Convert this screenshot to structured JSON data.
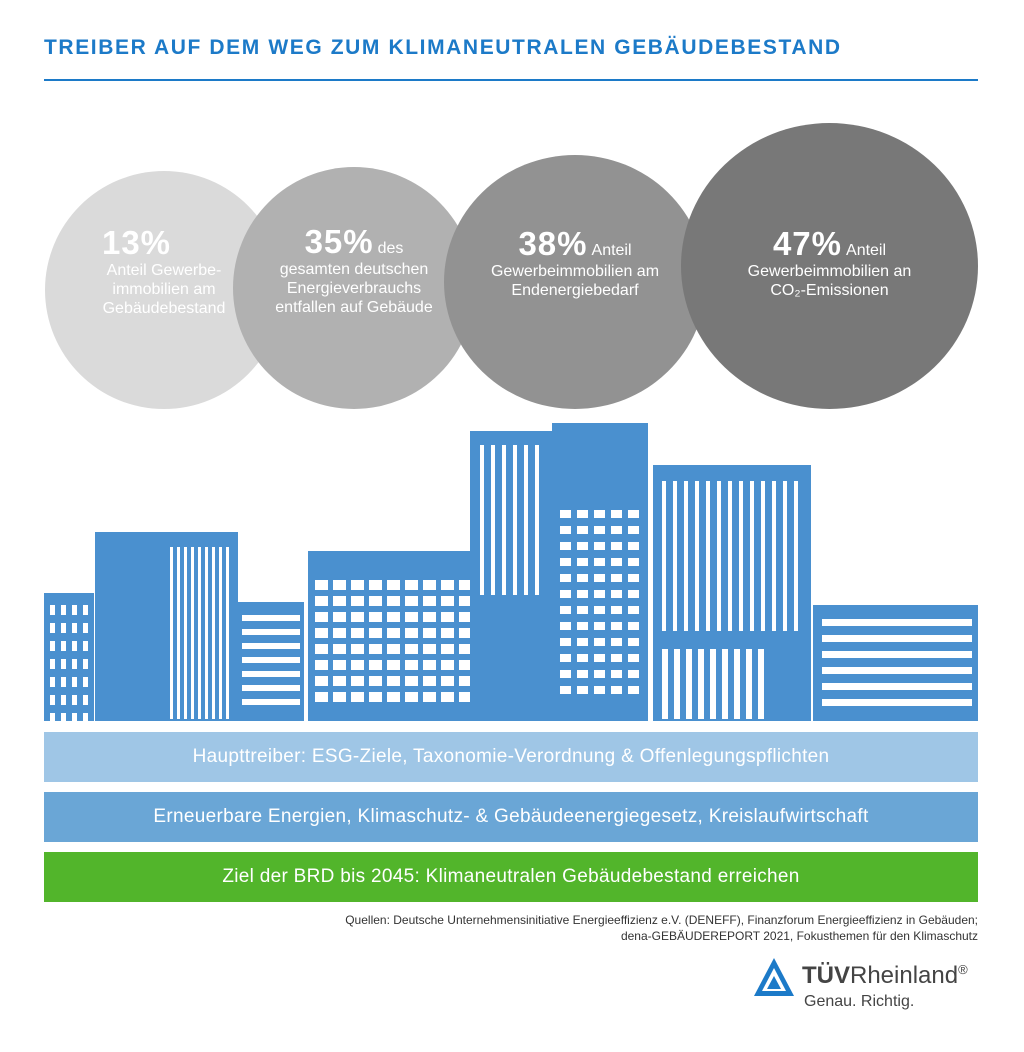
{
  "title": "TREIBER AUF DEM WEG ZUM KLIMANEUTRALEN GEBÄUDEBESTAND",
  "stats": [
    {
      "value": "13%",
      "inline": "",
      "text": "Anteil Gewerbe-\nimmobilien am\nGebäudebestand",
      "color": "#dadada"
    },
    {
      "value": "35%",
      "inline": "des",
      "text": "gesamten deutschen\nEnergieverbrauchs\nentfallen auf Gebäude",
      "color": "#b1b1b1"
    },
    {
      "value": "38%",
      "inline": "Anteil",
      "text": "Gewerbeimmobilien am\nEndenergiebedarf",
      "color": "#929292"
    },
    {
      "value": "47%",
      "inline": "Anteil",
      "text": "Gewerbeimmobilien an\nCO₂-Emissionen",
      "color": "#787878"
    }
  ],
  "bands": [
    {
      "text": "Haupttreiber: ESG-Ziele, Taxonomie-Verordnung & Offenlegungspflichten",
      "color": "#9fc6e6"
    },
    {
      "text": "Erneuerbare Energien, Klimaschutz- & Gebäudeenergiegesetz, Kreislaufwirtschaft",
      "color": "#6aa6d6"
    },
    {
      "text": "Ziel der BRD bis 2045: Klimaneutralen Gebäudebestand erreichen",
      "color": "#52b52b"
    }
  ],
  "sources": "Quellen: Deutsche Unternehmensinitiative Energieeffizienz e.V. (DENEFF), Finanzforum Energieeffizienz in Gebäuden;\ndena-GEBÄUDEREPORT 2021, Fokusthemen für den Klimaschutz",
  "logo": {
    "brand_bold": "TÜV",
    "brand_rest": "Rheinland",
    "registered": "®",
    "tagline": "Genau. Richtig."
  },
  "colors": {
    "accent": "#1c7ac8",
    "building": "#4a90cf",
    "window": "#ffffff"
  }
}
